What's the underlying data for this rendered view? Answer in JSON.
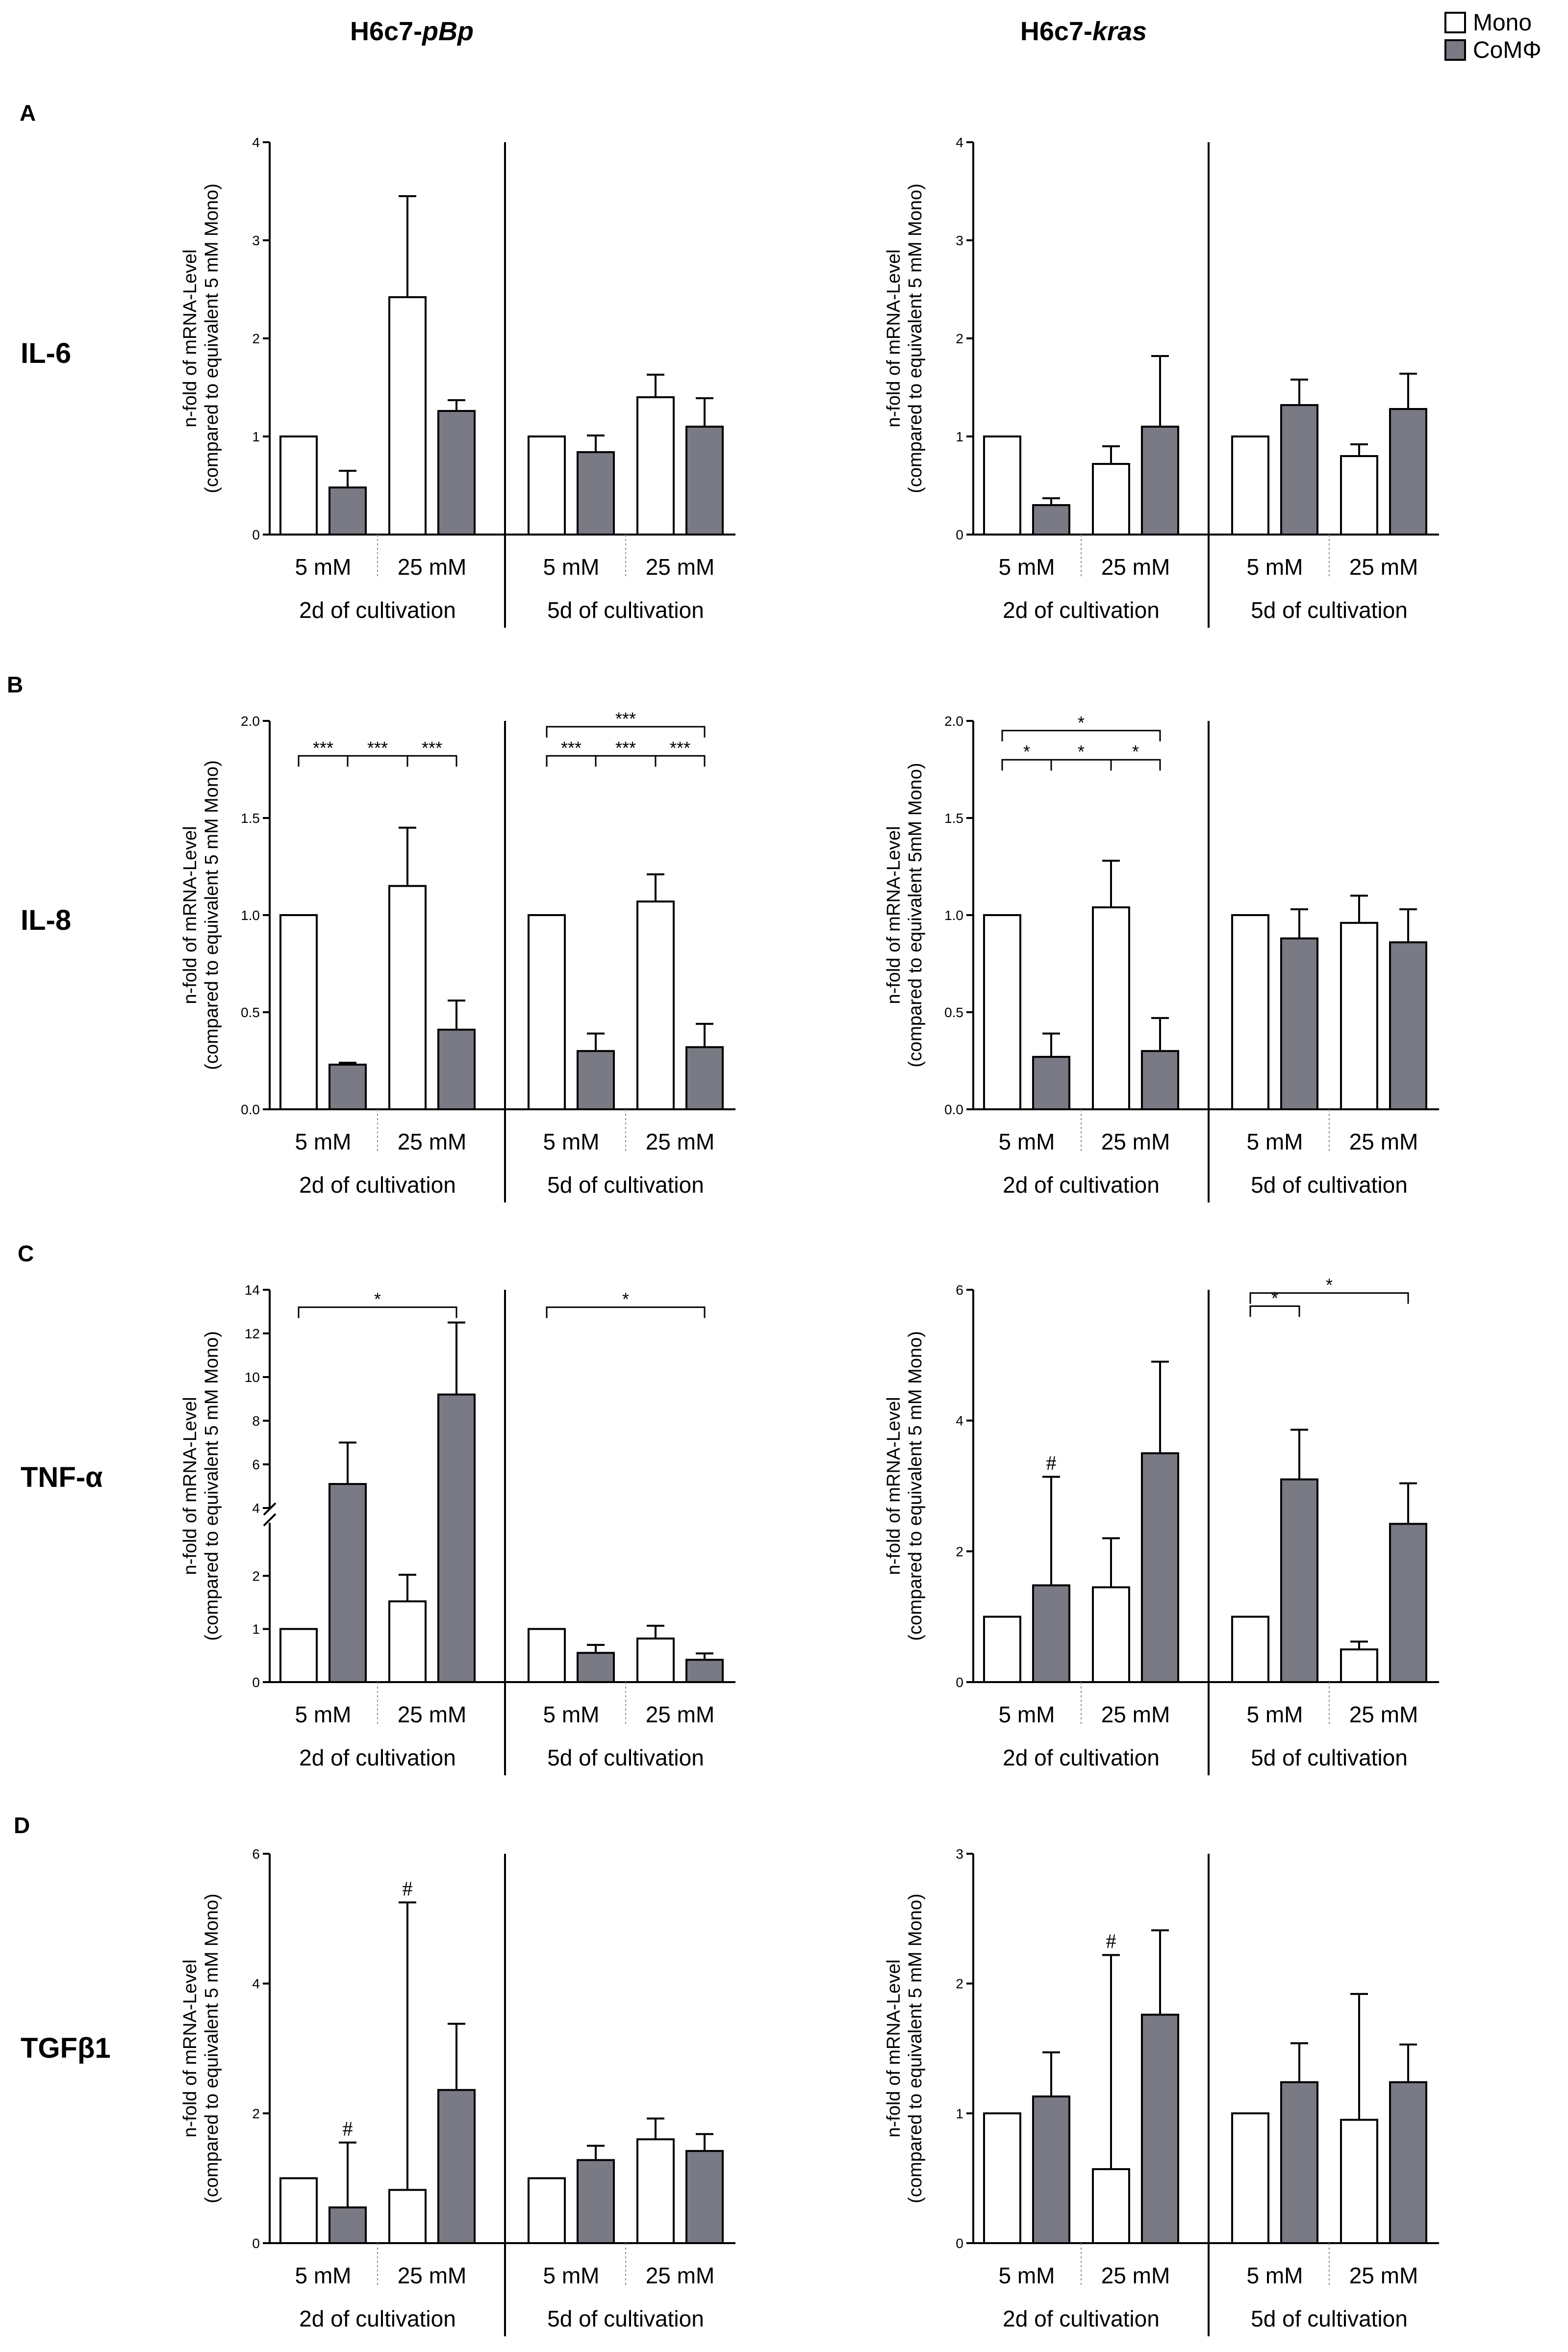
{
  "header": {
    "left_title": {
      "prefix": "H6c7-",
      "italic": "pBp"
    },
    "right_title": {
      "prefix": "H6c7-",
      "italic": "kras"
    }
  },
  "legend": {
    "items": [
      {
        "label": "Mono",
        "color": "#ffffff"
      },
      {
        "label": "CoMΦ",
        "color": "#7a7a85"
      }
    ]
  },
  "rows": [
    {
      "letter": "A",
      "label": "IL-6"
    },
    {
      "letter": "B",
      "label": "IL-8"
    },
    {
      "letter": "C",
      "label": "TNF-α"
    },
    {
      "letter": "D",
      "label": "TGFβ1"
    }
  ],
  "chart_data": [
    {
      "id": "A-pBp",
      "type": "bar",
      "row": 0,
      "column": 0,
      "ylabel": [
        "n-fold of mRNA-Level",
        "(compared to equivalent 5 mM Mono)"
      ],
      "ylim": [
        0,
        4
      ],
      "yticks": [
        0,
        1,
        2,
        3,
        4
      ],
      "yticklabels": [
        "0",
        "1",
        "2",
        "3",
        "4"
      ],
      "categories": [
        "5 mM",
        "25 mM",
        "5 mM",
        "25 mM"
      ],
      "groups": [
        "2d of cultivation",
        "5d of cultivation"
      ],
      "series": [
        {
          "name": "Mono",
          "values": [
            1.0,
            2.42,
            1.0,
            1.4
          ],
          "errors": [
            0,
            1.03,
            0,
            0.23
          ]
        },
        {
          "name": "CoMΦ",
          "values": [
            0.48,
            1.26,
            0.84,
            1.1
          ],
          "errors": [
            0.17,
            0.11,
            0.17,
            0.29
          ]
        }
      ],
      "brackets": [],
      "hash_marks": []
    },
    {
      "id": "A-kras",
      "type": "bar",
      "row": 0,
      "column": 1,
      "ylabel": [
        "n-fold of mRNA-Level",
        "(compared to equivalent 5 mM Mono)"
      ],
      "ylim": [
        0,
        4
      ],
      "yticks": [
        0,
        1,
        2,
        3,
        4
      ],
      "yticklabels": [
        "0",
        "1",
        "2",
        "3",
        "4"
      ],
      "categories": [
        "5 mM",
        "25 mM",
        "5 mM",
        "25 mM"
      ],
      "groups": [
        "2d of cultivation",
        "5d of cultivation"
      ],
      "series": [
        {
          "name": "Mono",
          "values": [
            1.0,
            0.72,
            1.0,
            0.8
          ],
          "errors": [
            0,
            0.18,
            0,
            0.12
          ]
        },
        {
          "name": "CoMΦ",
          "values": [
            0.3,
            1.1,
            1.32,
            1.28
          ],
          "errors": [
            0.07,
            0.72,
            0.26,
            0.36
          ]
        }
      ],
      "brackets": [],
      "hash_marks": []
    },
    {
      "id": "B-pBp",
      "type": "bar",
      "row": 1,
      "column": 0,
      "ylabel": [
        "n-fold of mRNA-Level",
        "(compared to equivalent 5 mM Mono)"
      ],
      "ylim": [
        0,
        2
      ],
      "yticks": [
        0,
        0.5,
        1,
        1.5,
        2
      ],
      "yticklabels": [
        "0.0",
        "0.5",
        "1.0",
        "1.5",
        "2.0"
      ],
      "categories": [
        "5 mM",
        "25 mM",
        "5 mM",
        "25 mM"
      ],
      "groups": [
        "2d of cultivation",
        "5d of cultivation"
      ],
      "series": [
        {
          "name": "Mono",
          "values": [
            1.0,
            1.15,
            1.0,
            1.07
          ],
          "errors": [
            0,
            0.3,
            0,
            0.14
          ]
        },
        {
          "name": "CoMΦ",
          "values": [
            0.23,
            0.41,
            0.3,
            0.32
          ],
          "errors": [
            0.01,
            0.15,
            0.09,
            0.12
          ]
        }
      ],
      "brackets": [
        {
          "from": 0,
          "to": 1,
          "level": 1.82,
          "label": "***"
        },
        {
          "from": 1,
          "to": 2,
          "level": 1.82,
          "label": "***"
        },
        {
          "from": 2,
          "to": 3,
          "level": 1.82,
          "label": "***"
        },
        {
          "from": 4,
          "to": 5,
          "level": 1.82,
          "label": "***"
        },
        {
          "from": 5,
          "to": 6,
          "level": 1.82,
          "label": "***"
        },
        {
          "from": 6,
          "to": 7,
          "level": 1.82,
          "label": "***"
        },
        {
          "from": 4,
          "to": 7,
          "level": 1.97,
          "label": "***"
        }
      ],
      "hash_marks": []
    },
    {
      "id": "B-kras",
      "type": "bar",
      "row": 1,
      "column": 1,
      "ylabel": [
        "n-fold of mRNA-Level",
        "(compared to equivalent 5mM Mono)"
      ],
      "ylim": [
        0,
        2
      ],
      "yticks": [
        0,
        0.5,
        1,
        1.5,
        2
      ],
      "yticklabels": [
        "0.0",
        "0.5",
        "1.0",
        "1.5",
        "2.0"
      ],
      "categories": [
        "5 mM",
        "25 mM",
        "5 mM",
        "25 mM"
      ],
      "groups": [
        "2d of cultivation",
        "5d of cultivation"
      ],
      "series": [
        {
          "name": "Mono",
          "values": [
            1.0,
            1.04,
            1.0,
            0.96
          ],
          "errors": [
            0,
            0.24,
            0,
            0.14
          ]
        },
        {
          "name": "CoMΦ",
          "values": [
            0.27,
            0.3,
            0.88,
            0.86
          ],
          "errors": [
            0.12,
            0.17,
            0.15,
            0.17
          ]
        }
      ],
      "brackets": [
        {
          "from": 0,
          "to": 1,
          "level": 1.8,
          "label": "*"
        },
        {
          "from": 1,
          "to": 2,
          "level": 1.8,
          "label": "*"
        },
        {
          "from": 2,
          "to": 3,
          "level": 1.8,
          "label": "*"
        },
        {
          "from": 0,
          "to": 3,
          "level": 1.95,
          "label": "*"
        }
      ],
      "hash_marks": []
    },
    {
      "id": "C-pBp",
      "type": "bar",
      "row": 2,
      "column": 0,
      "ylabel": [
        "n-fold of mRNA-Level",
        "(compared to equivalent 5 mM Mono)"
      ],
      "axis_break": {
        "lower": [
          0,
          3
        ],
        "upper": [
          4,
          14
        ],
        "gap_after": 3
      },
      "ylim": [
        0,
        14
      ],
      "yticks": [
        0,
        1,
        2,
        4,
        6,
        8,
        10,
        12,
        14
      ],
      "yticklabels": [
        "0",
        "1",
        "2",
        "4",
        "6",
        "8",
        "10",
        "12",
        "14"
      ],
      "categories": [
        "5 mM",
        "25 mM",
        "5 mM",
        "25 mM"
      ],
      "groups": [
        "2d of cultivation",
        "5d of cultivation"
      ],
      "series": [
        {
          "name": "Mono",
          "values": [
            1.0,
            1.52,
            1.0,
            0.82
          ],
          "errors": [
            0,
            0.5,
            0,
            0.24
          ]
        },
        {
          "name": "CoMΦ",
          "values": [
            5.1,
            9.2,
            0.55,
            0.42
          ],
          "errors": [
            1.9,
            3.3,
            0.15,
            0.12
          ]
        }
      ],
      "brackets": [
        {
          "from": 0,
          "to": 3,
          "level": 13.2,
          "label": "*"
        },
        {
          "from": 4,
          "to": 7,
          "level": 13.2,
          "label": "*"
        }
      ],
      "hash_marks": []
    },
    {
      "id": "C-kras",
      "type": "bar",
      "row": 2,
      "column": 1,
      "ylabel": [
        "n-fold of mRNA-Level",
        "(compared to equivalent 5 mM Mono)"
      ],
      "ylim": [
        0,
        6
      ],
      "yticks": [
        0,
        2,
        4,
        6
      ],
      "yticklabels": [
        "0",
        "2",
        "4",
        "6"
      ],
      "categories": [
        "5 mM",
        "25 mM",
        "5 mM",
        "25 mM"
      ],
      "groups": [
        "2d of cultivation",
        "5d of cultivation"
      ],
      "series": [
        {
          "name": "Mono",
          "values": [
            1.0,
            1.45,
            1.0,
            0.5
          ],
          "errors": [
            0,
            0.75,
            0,
            0.12
          ]
        },
        {
          "name": "CoMΦ",
          "values": [
            1.48,
            3.5,
            3.1,
            2.42
          ],
          "errors": [
            1.66,
            1.4,
            0.76,
            0.62
          ]
        }
      ],
      "brackets": [
        {
          "from": 4,
          "to": 5,
          "level": 5.75,
          "label": "*"
        },
        {
          "from": 4,
          "to": 7,
          "level": 5.95,
          "label": "*"
        }
      ],
      "hash_marks": [
        {
          "bar": 1,
          "label": "#"
        }
      ]
    },
    {
      "id": "D-pBp",
      "type": "bar",
      "row": 3,
      "column": 0,
      "ylabel": [
        "n-fold of mRNA-Level",
        "(compared to equivalent 5 mM Mono)"
      ],
      "ylim": [
        0,
        6
      ],
      "yticks": [
        0,
        2,
        4,
        6
      ],
      "yticklabels": [
        "0",
        "2",
        "4",
        "6"
      ],
      "categories": [
        "5 mM",
        "25 mM",
        "5 mM",
        "25 mM"
      ],
      "groups": [
        "2d of cultivation",
        "5d of cultivation"
      ],
      "series": [
        {
          "name": "Mono",
          "values": [
            1.0,
            0.82,
            1.0,
            1.6
          ],
          "errors": [
            0,
            4.43,
            0,
            0.32
          ]
        },
        {
          "name": "CoMΦ",
          "values": [
            0.55,
            2.36,
            1.28,
            1.42
          ],
          "errors": [
            1.0,
            1.02,
            0.22,
            0.26
          ]
        }
      ],
      "brackets": [],
      "hash_marks": [
        {
          "bar": 1,
          "label": "#"
        },
        {
          "bar": 2,
          "label": "#"
        }
      ]
    },
    {
      "id": "D-kras",
      "type": "bar",
      "row": 3,
      "column": 1,
      "ylabel": [
        "n-fold of mRNA-Level",
        "(compared to equivalent 5 mM Mono)"
      ],
      "ylim": [
        0,
        3
      ],
      "yticks": [
        0,
        1,
        2,
        3
      ],
      "yticklabels": [
        "0",
        "1",
        "2",
        "3"
      ],
      "categories": [
        "5 mM",
        "25 mM",
        "5 mM",
        "25 mM"
      ],
      "groups": [
        "2d of cultivation",
        "5d of cultivation"
      ],
      "series": [
        {
          "name": "Mono",
          "values": [
            1.0,
            0.57,
            1.0,
            0.95
          ],
          "errors": [
            0,
            1.65,
            0,
            0.97
          ]
        },
        {
          "name": "CoMΦ",
          "values": [
            1.13,
            1.76,
            1.24,
            1.24
          ],
          "errors": [
            0.34,
            0.65,
            0.3,
            0.29
          ]
        }
      ],
      "brackets": [],
      "hash_marks": [
        {
          "bar": 2,
          "label": "#"
        }
      ]
    }
  ]
}
